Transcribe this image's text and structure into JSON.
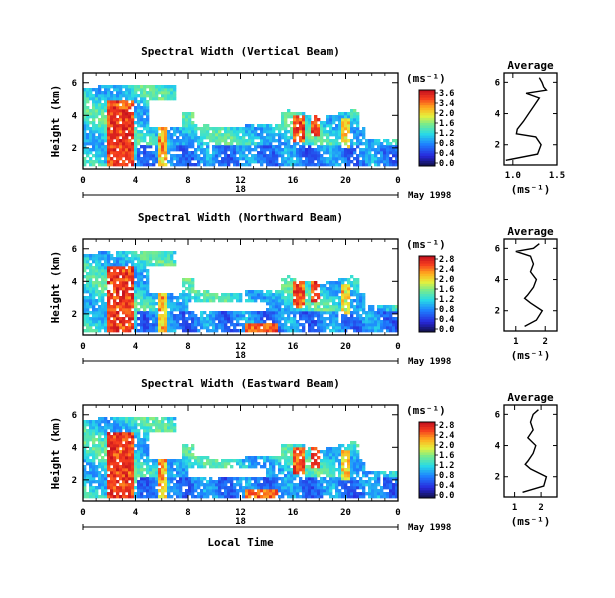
{
  "chart_data": [
    {
      "type": "heatmap",
      "title": "Spectral Width (Vertical Beam)",
      "ylabel": "Height (km)",
      "xticks": [
        "0",
        "4",
        "8",
        "12",
        "16",
        "20",
        "0"
      ],
      "yticks": [
        "2",
        "4",
        "6"
      ],
      "date_axis": {
        "day_label": "18",
        "month_label": "May 1998"
      },
      "colorbar": {
        "unit": "(ms⁻¹)",
        "ticks": [
          "3.6",
          "3.4",
          "2.0",
          "1.6",
          "1.2",
          "0.8",
          "0.4",
          "0.0"
        ]
      },
      "average": {
        "title": "Average",
        "xlabel": "(ms⁻¹)",
        "xticks": [
          "1.0",
          "1.5"
        ],
        "yticks": [
          "2",
          "4",
          "6"
        ],
        "xlim": [
          0.9,
          1.5
        ],
        "height": [
          1.0,
          1.4,
          2.0,
          2.5,
          2.7,
          3.0,
          3.5,
          4.0,
          4.5,
          5.0,
          5.3,
          5.5,
          5.7,
          6.0,
          6.3
        ],
        "width": [
          0.92,
          1.28,
          1.32,
          1.26,
          1.04,
          1.05,
          1.12,
          1.18,
          1.24,
          1.3,
          1.15,
          1.38,
          1.35,
          1.33,
          1.3
        ]
      }
    },
    {
      "type": "heatmap",
      "title": "Spectral Width (Northward Beam)",
      "ylabel": "Height (km)",
      "xticks": [
        "0",
        "4",
        "8",
        "12",
        "16",
        "20",
        "0"
      ],
      "yticks": [
        "2",
        "4",
        "6"
      ],
      "date_axis": {
        "day_label": "18",
        "month_label": "May 1998"
      },
      "colorbar": {
        "unit": "(ms⁻¹)",
        "ticks": [
          "2.8",
          "2.4",
          "2.0",
          "1.6",
          "1.2",
          "0.8",
          "0.4",
          "0.0"
        ]
      },
      "average": {
        "title": "Average",
        "xlabel": "(ms⁻¹)",
        "xticks": [
          "1",
          "2"
        ],
        "yticks": [
          "2",
          "4",
          "6"
        ],
        "xlim": [
          0.6,
          2.4
        ],
        "height": [
          1.0,
          1.4,
          2.0,
          2.5,
          2.8,
          3.0,
          3.5,
          4.0,
          4.5,
          5.0,
          5.5,
          5.8,
          6.0,
          6.3
        ],
        "width": [
          1.3,
          1.7,
          1.9,
          1.5,
          1.3,
          1.4,
          1.6,
          1.7,
          1.5,
          1.6,
          1.5,
          1.0,
          1.6,
          1.8
        ]
      }
    },
    {
      "type": "heatmap",
      "title": "Spectral Width (Eastward Beam)",
      "ylabel": "Height (km)",
      "xlabel": "Local Time",
      "xticks": [
        "0",
        "4",
        "8",
        "12",
        "16",
        "20",
        "0"
      ],
      "yticks": [
        "2",
        "4",
        "6"
      ],
      "date_axis": {
        "day_label": "18",
        "month_label": "May 1998"
      },
      "colorbar": {
        "unit": "(ms⁻¹)",
        "ticks": [
          "2.8",
          "2.4",
          "2.0",
          "1.6",
          "1.2",
          "0.8",
          "0.4",
          "0.0"
        ]
      },
      "average": {
        "title": "Average",
        "xlabel": "(ms⁻¹)",
        "xticks": [
          "1",
          "2"
        ],
        "yticks": [
          "2",
          "4",
          "6"
        ],
        "xlim": [
          0.6,
          2.6
        ],
        "height": [
          1.0,
          1.4,
          2.0,
          2.5,
          2.8,
          3.0,
          3.5,
          4.0,
          4.5,
          5.0,
          5.5,
          6.0,
          6.3
        ],
        "width": [
          1.3,
          2.1,
          2.2,
          1.6,
          1.4,
          1.5,
          1.7,
          1.8,
          1.5,
          1.7,
          1.6,
          1.7,
          1.9
        ]
      }
    }
  ]
}
